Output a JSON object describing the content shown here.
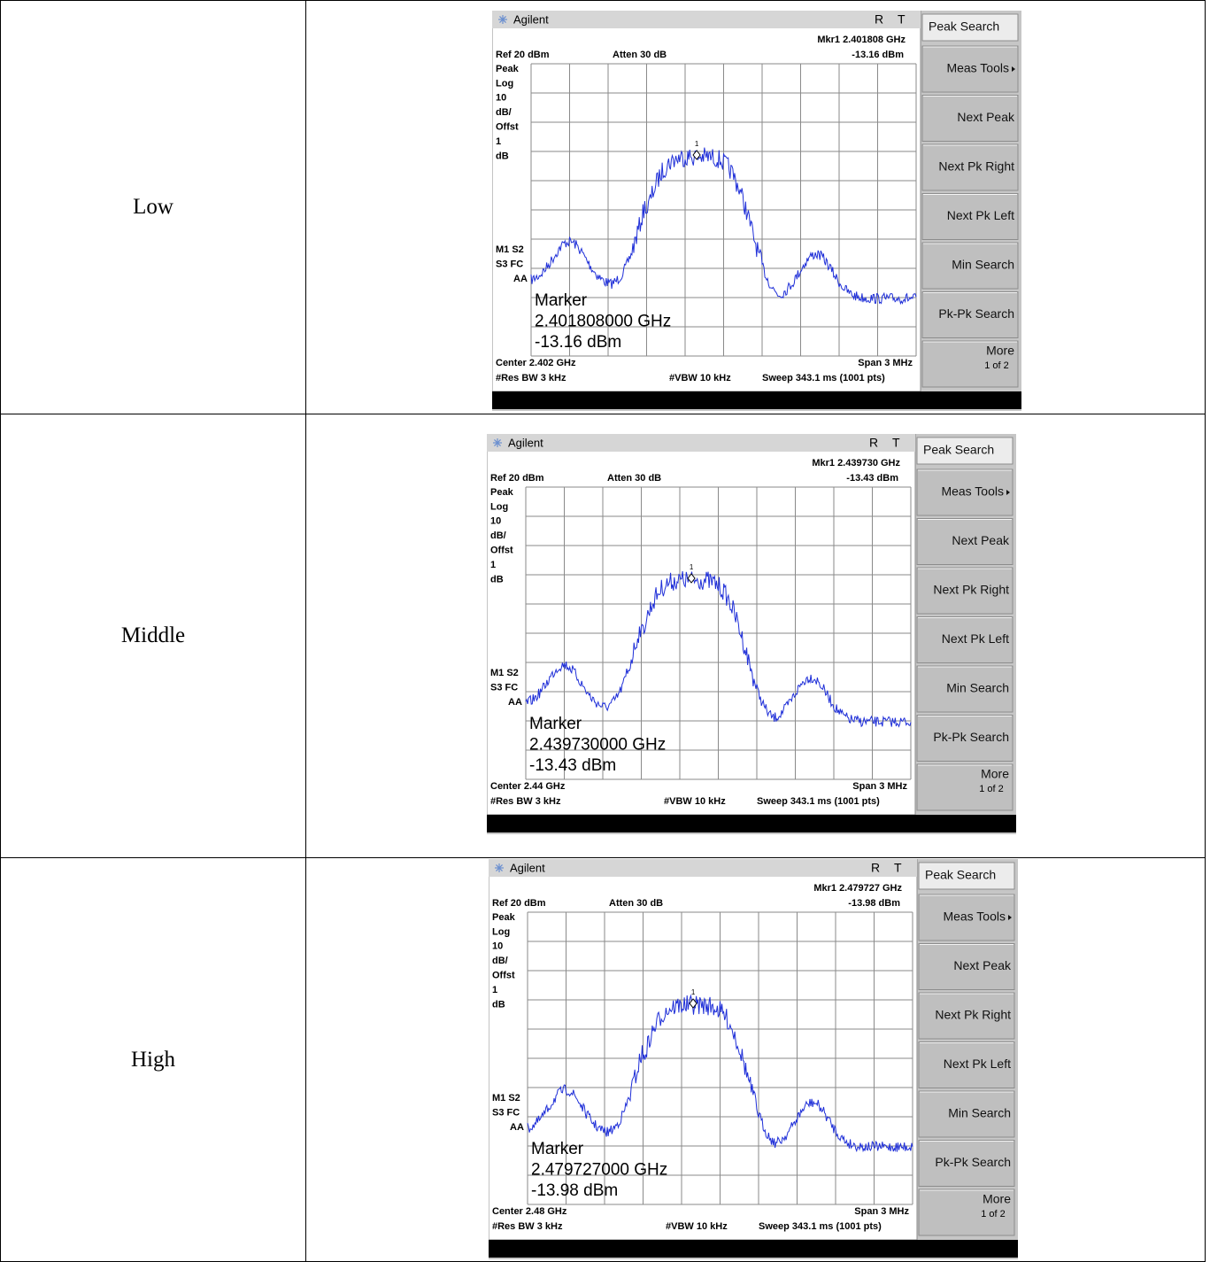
{
  "rows": [
    {
      "label": "Low",
      "screen": {
        "brand": "Agilent",
        "r": "R",
        "t": "T",
        "mkr": "Mkr1  2.401808 GHz",
        "mkr_level": "-13.16 dBm",
        "ref": "Ref 20 dBm",
        "atten": "Atten 30 dB",
        "left_labels": [
          "Peak",
          "Log",
          "10",
          "dB/",
          "Offst",
          "1",
          "dB"
        ],
        "status": [
          "M1  S2",
          "S3  FC",
          "AA"
        ],
        "marker_num": "1",
        "marker": [
          "Marker",
          "2.401808000 GHz",
          "-13.16 dBm"
        ],
        "center": "Center 2.402 GHz",
        "span": "Span 3 MHz",
        "res_bw": "#Res BW 3 kHz",
        "vbw": "#VBW 10 kHz",
        "sweep": "Sweep 343.1 ms (1001 pts)",
        "softkeys": [
          "Peak Search",
          "Meas Tools",
          "Next Peak",
          "Next Pk Right",
          "Next Pk Left",
          "Min Search",
          "Pk-Pk Search",
          "More"
        ],
        "more_page": "1 of 2"
      }
    },
    {
      "label": "Middle",
      "screen": {
        "brand": "Agilent",
        "r": "R",
        "t": "T",
        "mkr": "Mkr1  2.439730 GHz",
        "mkr_level": "-13.43 dBm",
        "ref": "Ref 20 dBm",
        "atten": "Atten 30 dB",
        "left_labels": [
          "Peak",
          "Log",
          "10",
          "dB/",
          "Offst",
          "1",
          "dB"
        ],
        "status": [
          "M1  S2",
          "S3  FC",
          "AA"
        ],
        "marker_num": "1",
        "marker": [
          "Marker",
          "2.439730000 GHz",
          "-13.43 dBm"
        ],
        "center": "Center 2.44 GHz",
        "span": "Span 3 MHz",
        "res_bw": "#Res BW 3 kHz",
        "vbw": "#VBW 10 kHz",
        "sweep": "Sweep 343.1 ms (1001 pts)",
        "softkeys": [
          "Peak Search",
          "Meas Tools",
          "Next Peak",
          "Next Pk Right",
          "Next Pk Left",
          "Min Search",
          "Pk-Pk Search",
          "More"
        ],
        "more_page": "1 of 2"
      }
    },
    {
      "label": "High",
      "screen": {
        "brand": "Agilent",
        "r": "R",
        "t": "T",
        "mkr": "Mkr1  2.479727 GHz",
        "mkr_level": "-13.98 dBm",
        "ref": "Ref 20 dBm",
        "atten": "Atten 30 dB",
        "left_labels": [
          "Peak",
          "Log",
          "10",
          "dB/",
          "Offst",
          "1",
          "dB"
        ],
        "status": [
          "M1  S2",
          "S3  FC",
          "AA"
        ],
        "marker_num": "1",
        "marker": [
          "Marker",
          "2.479727000 GHz",
          "-13.98 dBm"
        ],
        "center": "Center 2.48 GHz",
        "span": "Span 3 MHz",
        "res_bw": "#Res BW 3 kHz",
        "vbw": "#VBW 10 kHz",
        "sweep": "Sweep 343.1 ms (1001 pts)",
        "softkeys": [
          "Peak Search",
          "Meas Tools",
          "Next Peak",
          "Next Pk Right",
          "Next Pk Left",
          "Min Search",
          "Pk-Pk Search",
          "More"
        ],
        "more_page": "1 of 2"
      }
    }
  ]
}
